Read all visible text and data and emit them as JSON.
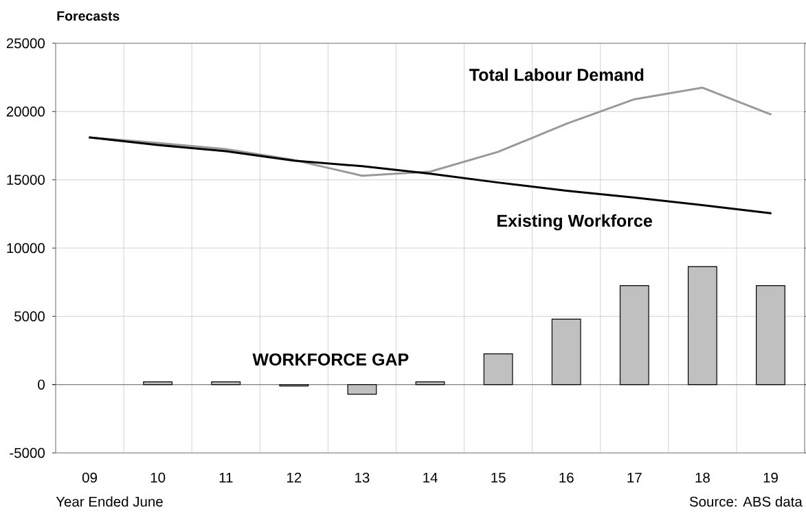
{
  "chart_data": {
    "type": "line",
    "title": "Forecasts",
    "xlabel": "Year Ended June",
    "categories": [
      "09",
      "10",
      "11",
      "12",
      "13",
      "14",
      "15",
      "16",
      "17",
      "18",
      "19"
    ],
    "series": [
      {
        "name": "WORKFORCE GAP",
        "type": "bar",
        "color": "#c0c0c0",
        "values": [
          null,
          200,
          200,
          -100,
          -700,
          200,
          2250,
          4800,
          7250,
          8650,
          7250
        ]
      },
      {
        "name": "Total Labour Demand",
        "color": "#999999",
        "values": [
          18100,
          17700,
          17250,
          16450,
          15300,
          15600,
          17050,
          19100,
          20900,
          21750,
          19800
        ]
      },
      {
        "name": "Existing Workforce",
        "color": "#000000",
        "values": [
          18100,
          17550,
          17100,
          16400,
          16000,
          15450,
          14800,
          14200,
          13700,
          13150,
          12550
        ]
      }
    ],
    "ylim": [
      -5000,
      25000
    ],
    "yticks": [
      -5000,
      0,
      5000,
      10000,
      15000,
      20000,
      25000
    ],
    "grid": true,
    "annotations": [
      "Source: ABS data"
    ]
  }
}
